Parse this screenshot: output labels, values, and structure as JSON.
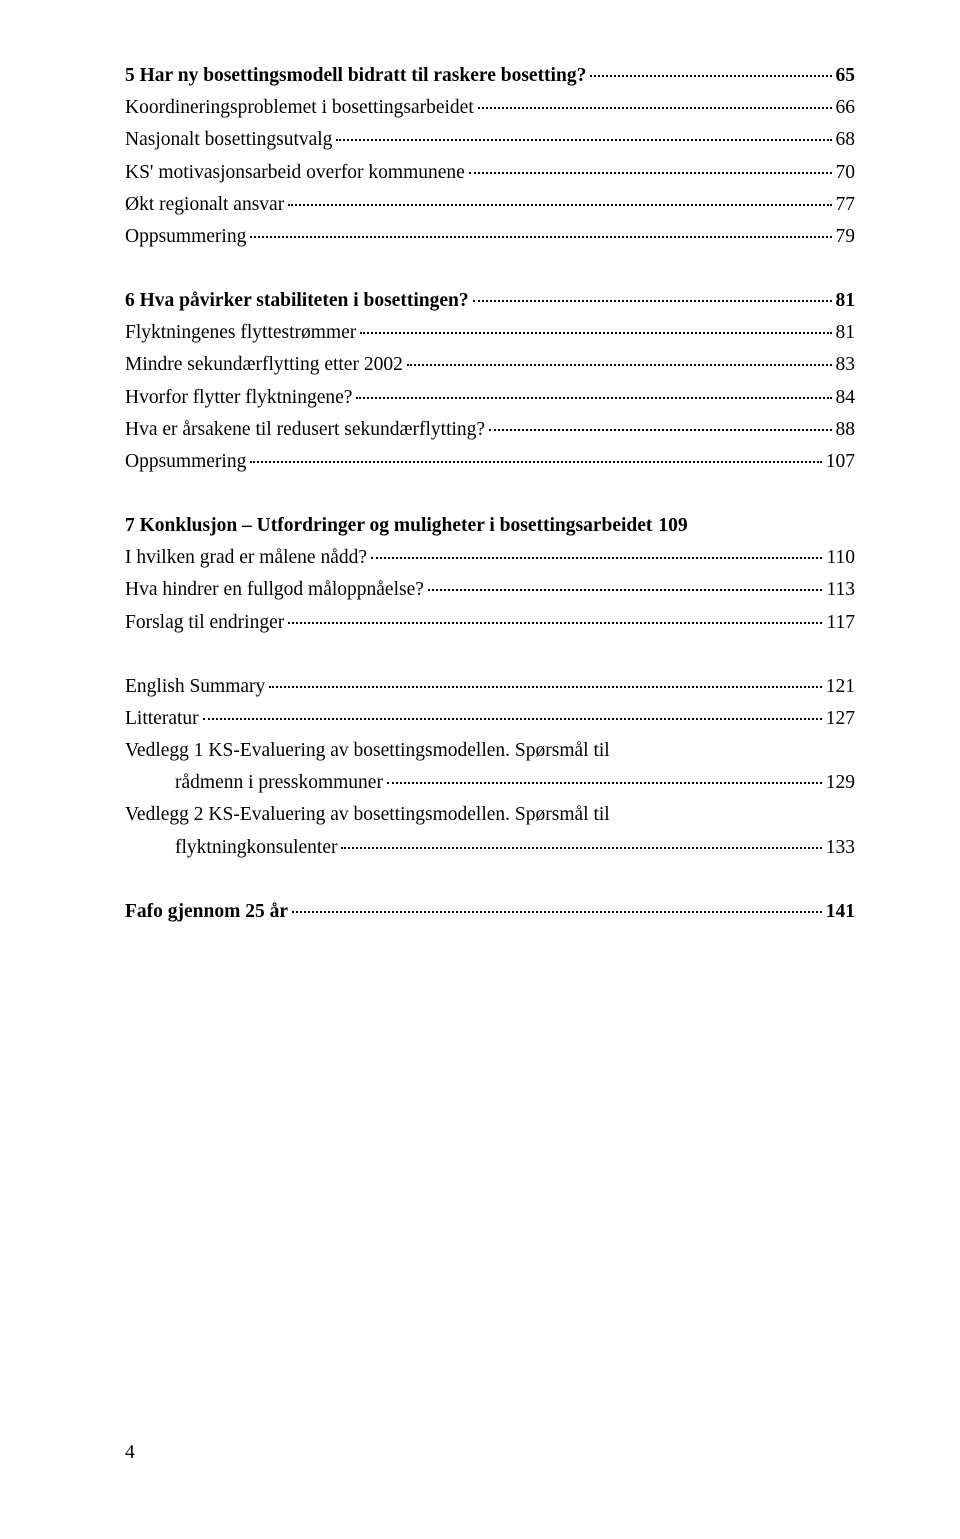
{
  "entries": [
    {
      "type": "heading",
      "text": "5 Har ny bosettingsmodell bidratt til raskere bosetting?",
      "page": "65"
    },
    {
      "type": "item",
      "text": "Koordineringsproblemet i bosettingsarbeidet",
      "page": "66"
    },
    {
      "type": "item",
      "text": "Nasjonalt bosettingsutvalg",
      "page": "68"
    },
    {
      "type": "item",
      "text": "KS' motivasjonsarbeid overfor kommunene",
      "page": "70"
    },
    {
      "type": "item",
      "text": "Økt regionalt ansvar",
      "page": "77"
    },
    {
      "type": "item",
      "text": "Oppsummering",
      "page": "79"
    },
    {
      "type": "gap"
    },
    {
      "type": "heading",
      "text": "6 Hva påvirker stabiliteten i bosettingen?",
      "page": "81"
    },
    {
      "type": "item",
      "text": "Flyktningenes flyttestrømmer",
      "page": "81"
    },
    {
      "type": "item",
      "text": "Mindre sekundærflytting etter 2002",
      "page": "83"
    },
    {
      "type": "item",
      "text": "Hvorfor flytter flyktningene?",
      "page": "84"
    },
    {
      "type": "item",
      "text": "Hva er årsakene til redusert sekundærflytting?",
      "page": "88"
    },
    {
      "type": "item",
      "text": "Oppsummering",
      "page": "107"
    },
    {
      "type": "gap"
    },
    {
      "type": "heading",
      "text": "7 Konklusjon – Utfordringer og muligheter i bosettingsarbeidet",
      "page": "109",
      "nodots": true
    },
    {
      "type": "item",
      "text": "I hvilken grad er målene nådd?",
      "page": "110"
    },
    {
      "type": "item",
      "text": "Hva hindrer en fullgod måloppnåelse?",
      "page": "113"
    },
    {
      "type": "item",
      "text": "Forslag til endringer",
      "page": "117"
    },
    {
      "type": "gap"
    },
    {
      "type": "item",
      "text": "English Summary",
      "page": "121"
    },
    {
      "type": "item",
      "text": "Litteratur",
      "page": "127"
    },
    {
      "type": "multiline",
      "lines": [
        "Vedlegg 1 KS-Evaluering av bosettingsmodellen. Spørsmål til",
        "rådmenn i presskommuner"
      ],
      "page": "129"
    },
    {
      "type": "multiline",
      "lines": [
        "Vedlegg 2 KS-Evaluering av bosettingsmodellen. Spørsmål til",
        "flyktningkonsulenter"
      ],
      "page": "133"
    },
    {
      "type": "gap"
    },
    {
      "type": "heading",
      "text": "Fafo gjennom 25 år",
      "page": "141"
    }
  ],
  "page_number": "4"
}
